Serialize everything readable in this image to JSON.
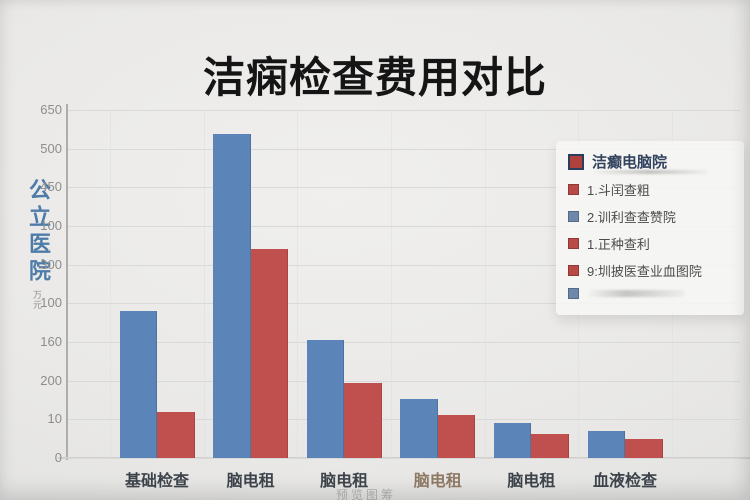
{
  "title": "洁痫检查费用对比",
  "watermark": "预览图筹",
  "y_axis": {
    "label": "公立医院",
    "unit": "万元"
  },
  "legend": {
    "title": "洁癫电脑院",
    "title_marker": {
      "fill": "#b0413d",
      "border": "#2c3e5e"
    },
    "marker_colors": {
      "red": "#b84a46",
      "blue": "#6d88aa"
    },
    "items": [
      {
        "marker": "red",
        "label": "1.斗闰查粗"
      },
      {
        "marker": "blue",
        "label": "2.训利查查赞院"
      },
      {
        "marker": "red",
        "label": "1.正种查利"
      },
      {
        "marker": "red",
        "label": "9:圳披医查业血图院"
      },
      {
        "marker": "blue",
        "label": ""
      }
    ]
  },
  "chart_data": {
    "type": "bar",
    "title": "洁痫检查费用对比",
    "categories": [
      "基础检查",
      "脑电租",
      "脑电租",
      "脑电租",
      "脑电租",
      "血液检查"
    ],
    "category_label_colors": [
      "#3d434a",
      "#3d434a",
      "#3d434a",
      "#8d7963",
      "#3d434a",
      "#3d434a"
    ],
    "series": [
      {
        "name": "blue",
        "color": "#5b84b8",
        "values": [
          275,
          605,
          220,
          110,
          65,
          50
        ]
      },
      {
        "name": "red",
        "color": "#c0504d",
        "values": [
          85,
          390,
          140,
          80,
          45,
          35
        ]
      }
    ],
    "ylim": [
      0,
      650
    ],
    "y_tick_labels": [
      "650",
      "500",
      "450",
      "100",
      "300",
      "100",
      "160",
      "200",
      "10",
      "0"
    ],
    "grid": true,
    "legend_position": "right",
    "xlabel": "",
    "ylabel": "公立医院"
  }
}
